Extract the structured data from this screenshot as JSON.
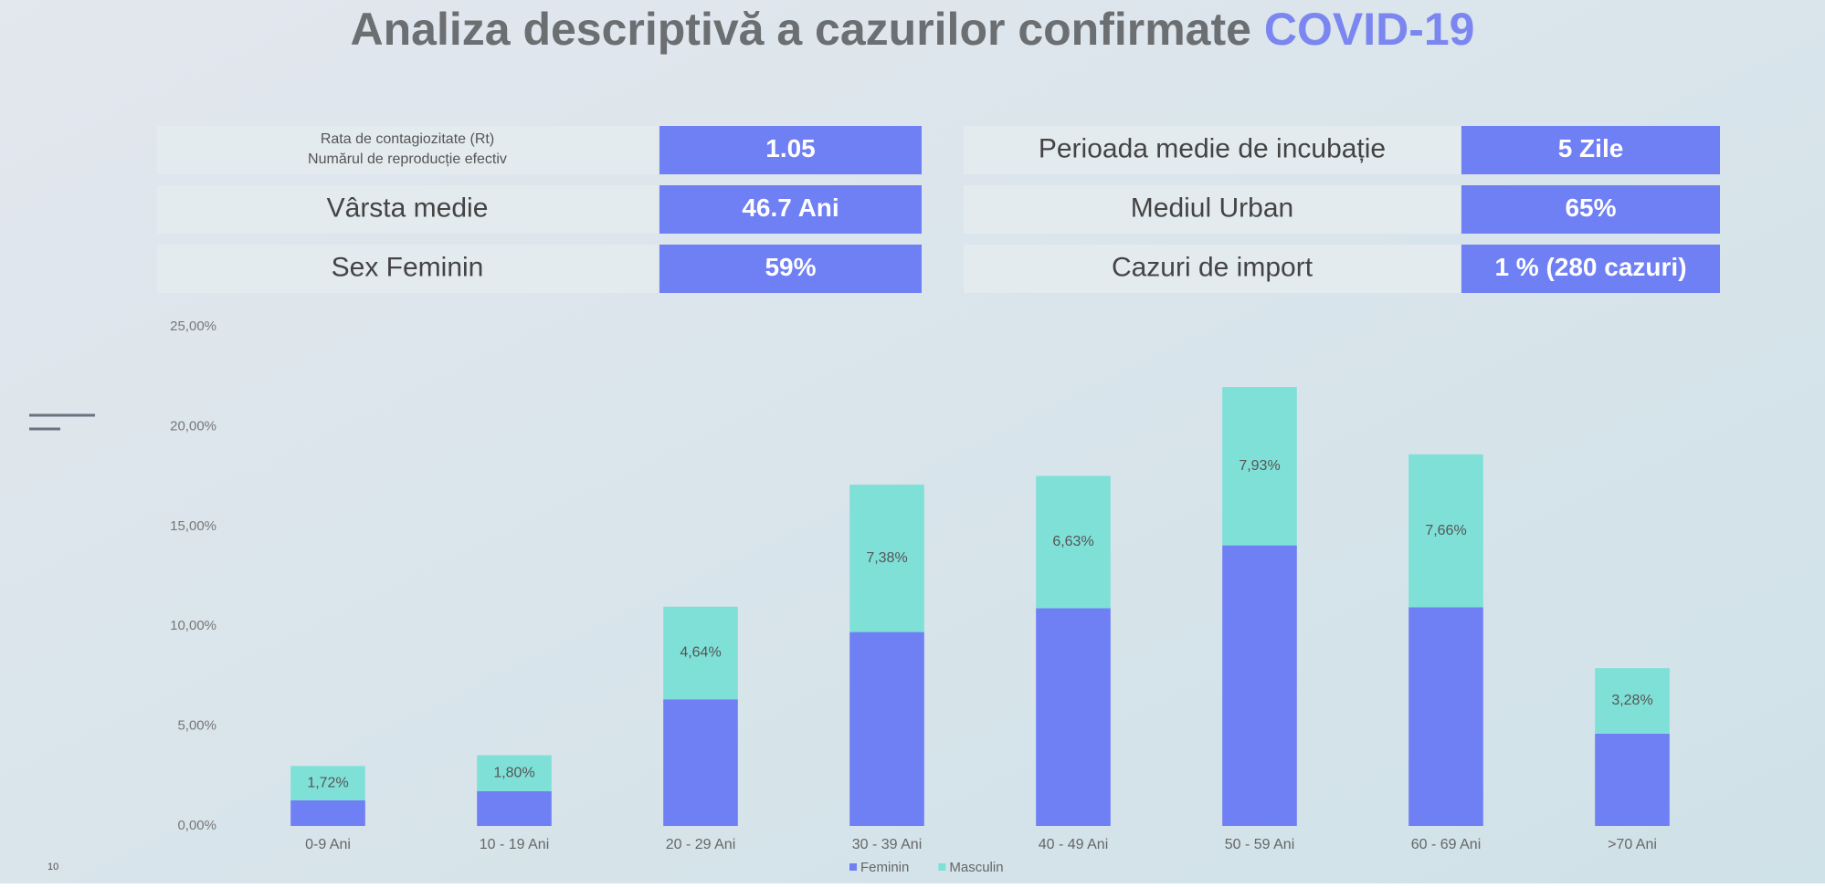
{
  "title": {
    "main": "Analiza descriptivă a cazurilor confirmate",
    "highlight": "COVID-19"
  },
  "stats": [
    {
      "label_lines": [
        "Rata de contagiozitate (Rt)",
        "Numărul de reproducție efectiv"
      ],
      "value": "1.05"
    },
    {
      "label": "Vârsta medie",
      "value": "46.7  Ani"
    },
    {
      "label": "Sex Feminin",
      "value": "59%"
    },
    {
      "label": "Perioada medie de incubație",
      "value": "5 Zile"
    },
    {
      "label": "Mediul Urban",
      "value": "65%"
    },
    {
      "label": "Cazuri de import",
      "value": "1 % (280 cazuri)"
    }
  ],
  "slide_number": "10",
  "chart_data": {
    "type": "stacked-bar",
    "categories": [
      "0-9 Ani",
      "10 - 19 Ani",
      "20 - 29 Ani",
      "30 - 39 Ani",
      "40 - 49 Ani",
      "50 - 59 Ani",
      "60 - 69 Ani",
      ">70 Ani"
    ],
    "series": [
      {
        "name": "Feminin",
        "color": "#6f7ff4",
        "values": [
          1.28,
          1.74,
          6.34,
          9.71,
          10.9,
          14.05,
          10.95,
          4.62
        ]
      },
      {
        "name": "Masculin",
        "color": "#7fe0d8",
        "values": [
          1.72,
          1.8,
          4.64,
          7.38,
          6.63,
          7.93,
          7.66,
          3.28
        ],
        "value_labels": [
          "1,72%",
          "1,80%",
          "4,64%",
          "7,38%",
          "6,63%",
          "7,93%",
          "7,66%",
          "3,28%"
        ]
      }
    ],
    "ylim": [
      0,
      25
    ],
    "yticks": [
      {
        "value": 0,
        "label": "0,00%"
      },
      {
        "value": 5,
        "label": "5,00%"
      },
      {
        "value": 10,
        "label": "10,00%"
      },
      {
        "value": 15,
        "label": "15,00%"
      },
      {
        "value": 20,
        "label": "20,00%"
      },
      {
        "value": 25,
        "label": "25,00%"
      }
    ],
    "grid": false,
    "legend": "bottom"
  }
}
